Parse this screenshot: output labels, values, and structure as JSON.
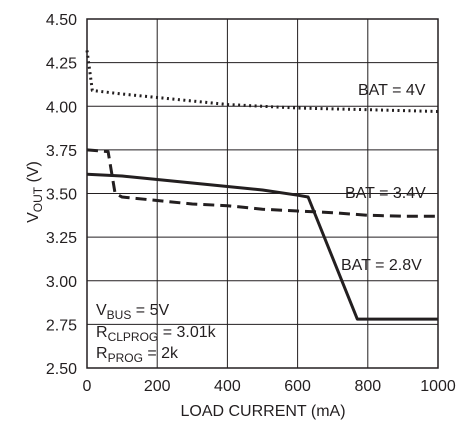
{
  "chart_data": {
    "type": "line",
    "xlabel": "LOAD CURRENT (mA)",
    "ylabel": {
      "main": "V",
      "sub": "OUT",
      "unit": " (V)"
    },
    "xlim": [
      0,
      1000
    ],
    "ylim": [
      2.5,
      4.5
    ],
    "x_ticks": [
      0,
      200,
      400,
      600,
      800,
      1000
    ],
    "y_ticks": [
      "2.50",
      "2.75",
      "3.00",
      "3.25",
      "3.50",
      "3.75",
      "4.00",
      "4.25",
      "4.50"
    ],
    "grid": true,
    "series": [
      {
        "name": "BAT = 4V",
        "style": "dotted",
        "x": [
          0,
          8,
          15,
          100,
          200,
          300,
          400,
          500,
          600,
          700,
          800,
          900,
          1000
        ],
        "y": [
          4.32,
          4.2,
          4.09,
          4.07,
          4.05,
          4.03,
          4.01,
          4.0,
          3.99,
          3.985,
          3.98,
          3.975,
          3.97
        ]
      },
      {
        "name": "BAT = 3.4V",
        "style": "dashed",
        "x": [
          0,
          60,
          80,
          100,
          200,
          300,
          400,
          500,
          600,
          700,
          800,
          900,
          1000
        ],
        "y": [
          3.75,
          3.74,
          3.5,
          3.48,
          3.46,
          3.44,
          3.43,
          3.41,
          3.4,
          3.39,
          3.375,
          3.37,
          3.37
        ]
      },
      {
        "name": "BAT = 2.8V",
        "style": "solid",
        "x": [
          0,
          100,
          200,
          300,
          400,
          500,
          600,
          630,
          770,
          800,
          900,
          1000
        ],
        "y": [
          3.61,
          3.6,
          3.58,
          3.56,
          3.54,
          3.52,
          3.49,
          3.48,
          2.78,
          2.78,
          2.78,
          2.78
        ]
      }
    ],
    "annotations": {
      "vbus": {
        "main": "V",
        "sub": "BUS",
        "rest": " = 5V"
      },
      "rclprog": {
        "main": "R",
        "sub": "CLPROG",
        "rest": " = 3.01k"
      },
      "rprog": {
        "main": "R",
        "sub": "PROG",
        "rest": " = 2k"
      }
    }
  }
}
